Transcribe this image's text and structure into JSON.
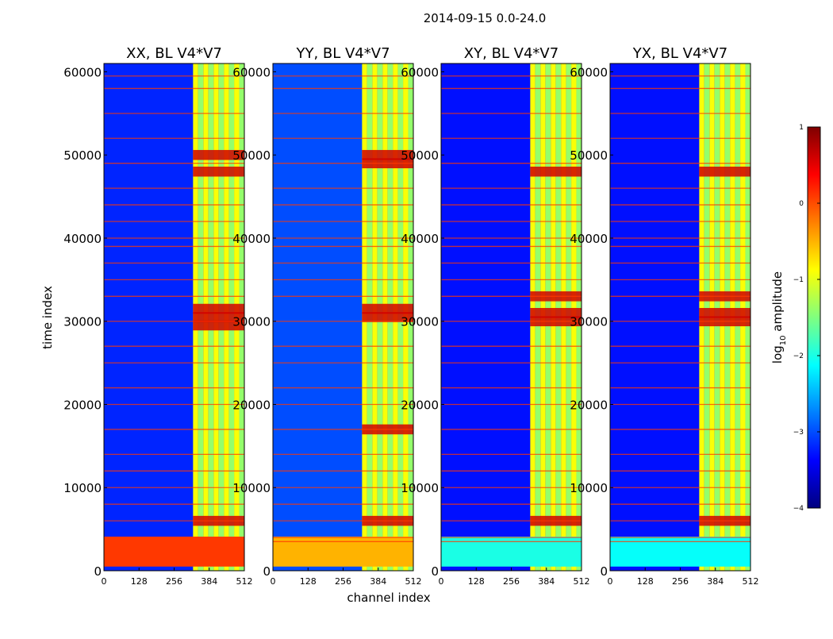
{
  "suptitle": "2014-09-15 0.0-24.0",
  "colorbar": {
    "label": "log10 amplitude",
    "ticks": [
      1,
      0,
      -1,
      -2,
      -3,
      -4
    ],
    "tick_labels": [
      "1",
      "0",
      "−1",
      "−2",
      "−3",
      "−4"
    ],
    "range": [
      -4,
      1
    ],
    "colormap": "jet"
  },
  "chart_data": [
    {
      "type": "heatmap",
      "title": "XX, BL V4*V7",
      "xlabel": "channel index",
      "ylabel": "time index",
      "xlim": [
        0,
        512
      ],
      "ylim": [
        0,
        61000
      ],
      "x_ticks": [
        0,
        128,
        256,
        384,
        512
      ],
      "y_ticks": [
        0,
        10000,
        20000,
        30000,
        40000,
        50000,
        60000
      ],
      "background_log_amp": -3.2,
      "band_channels": [
        [
          325,
          512
        ]
      ],
      "peak_rows": [
        6000,
        29500,
        30500,
        31500,
        48000,
        50000
      ],
      "flag_rows": [
        3500,
        4000,
        6000,
        8000,
        10000,
        12000,
        14000,
        17000,
        20000,
        22000,
        25000,
        27000,
        30000,
        33000,
        35000,
        37000,
        39000,
        40000,
        42000,
        44000,
        46000,
        49000,
        52000,
        55000,
        58000,
        59500
      ],
      "flag_alpha": 0.75,
      "low_block": {
        "from": 500,
        "to": 4100,
        "log_amp": 0.1
      }
    },
    {
      "type": "heatmap",
      "title": "YY, BL V4*V7",
      "xlabel": "channel index",
      "ylabel": "",
      "xlim": [
        0,
        512
      ],
      "ylim": [
        0,
        61000
      ],
      "x_ticks": [
        0,
        128,
        256,
        384,
        512
      ],
      "y_ticks": [
        0,
        10000,
        20000,
        30000,
        40000,
        50000,
        60000
      ],
      "background_log_amp": -3.0,
      "band_channels": [
        [
          325,
          512
        ]
      ],
      "peak_rows": [
        6000,
        17000,
        30500,
        31500,
        49000,
        50000
      ],
      "flag_rows": [
        3500,
        4000,
        6000,
        8000,
        10000,
        12000,
        14000,
        17000,
        20000,
        22000,
        25000,
        27000,
        30000,
        33000,
        35000,
        37000,
        39000,
        40000,
        42000,
        44000,
        46000,
        49000,
        52000,
        55000,
        58000,
        59500
      ],
      "flag_alpha": 0.75,
      "low_block": {
        "from": 500,
        "to": 4100,
        "log_amp": -0.5
      }
    },
    {
      "type": "heatmap",
      "title": "XY, BL V4*V7",
      "xlabel": "channel index",
      "ylabel": "",
      "xlim": [
        0,
        512
      ],
      "ylim": [
        0,
        61000
      ],
      "x_ticks": [
        0,
        128,
        256,
        384,
        512
      ],
      "y_ticks": [
        0,
        10000,
        20000,
        30000,
        40000,
        50000,
        60000
      ],
      "background_log_amp": -3.3,
      "band_channels": [
        [
          325,
          512
        ]
      ],
      "peak_rows": [
        6000,
        30000,
        31000,
        33000,
        48000
      ],
      "flag_rows": [
        3500,
        4000,
        6000,
        8000,
        10000,
        12000,
        14000,
        17000,
        20000,
        22000,
        25000,
        27000,
        30000,
        33000,
        35000,
        37000,
        39000,
        40000,
        42000,
        44000,
        46000,
        49000,
        52000,
        55000,
        58000,
        59500
      ],
      "flag_alpha": 0.75,
      "low_block": {
        "from": 500,
        "to": 4100,
        "log_amp": -2.0
      }
    },
    {
      "type": "heatmap",
      "title": "YX, BL V4*V7",
      "xlabel": "channel index",
      "ylabel": "",
      "xlim": [
        0,
        512
      ],
      "ylim": [
        0,
        61000
      ],
      "x_ticks": [
        0,
        128,
        256,
        384,
        512
      ],
      "y_ticks": [
        0,
        10000,
        20000,
        30000,
        40000,
        50000,
        60000
      ],
      "background_log_amp": -3.3,
      "band_channels": [
        [
          325,
          512
        ]
      ],
      "peak_rows": [
        6000,
        30000,
        31000,
        33000,
        48000
      ],
      "flag_rows": [
        3500,
        4000,
        6000,
        8000,
        10000,
        12000,
        14000,
        17000,
        20000,
        22000,
        25000,
        27000,
        30000,
        33000,
        35000,
        37000,
        39000,
        40000,
        42000,
        44000,
        46000,
        49000,
        52000,
        55000,
        58000,
        59500
      ],
      "flag_alpha": 0.75,
      "low_block": {
        "from": 500,
        "to": 4100,
        "log_amp": -2.1
      }
    }
  ]
}
